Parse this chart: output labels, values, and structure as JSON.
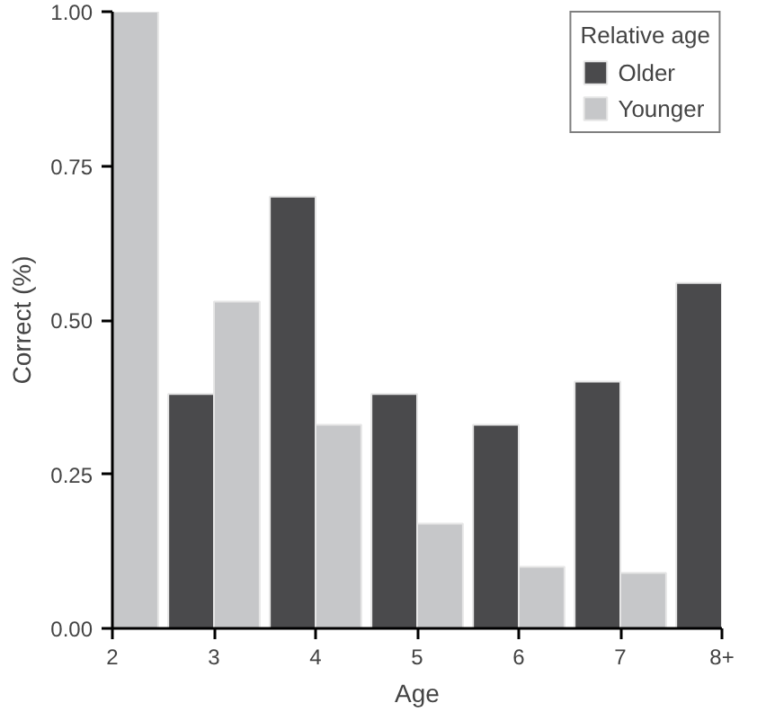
{
  "chart_data": {
    "type": "bar",
    "xlabel": "Age",
    "ylabel": "Correct (%)",
    "legend_title": "Relative age",
    "categories": [
      "2",
      "3",
      "4",
      "5",
      "6",
      "7",
      "8+"
    ],
    "series": [
      {
        "name": "Older",
        "color": "#4a4a4c",
        "values": [
          null,
          0.38,
          0.7,
          0.38,
          0.33,
          0.4,
          0.56
        ]
      },
      {
        "name": "Younger",
        "color": "#c6c7c9",
        "values": [
          1.0,
          0.53,
          0.33,
          0.17,
          0.1,
          0.09,
          null
        ]
      }
    ],
    "ylim": [
      0,
      1
    ],
    "yticks": [
      {
        "value": 0,
        "label": "0.00"
      },
      {
        "value": 0.25,
        "label": "0.25"
      },
      {
        "value": 0.5,
        "label": "0.50"
      },
      {
        "value": 0.75,
        "label": "0.75"
      },
      {
        "value": 1,
        "label": "1.00"
      }
    ],
    "grid": false,
    "legend": "top right"
  }
}
